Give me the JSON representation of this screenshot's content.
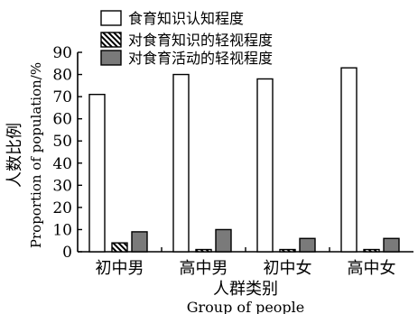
{
  "chart_data": {
    "type": "bar",
    "title": "",
    "xlabel": "人群类别",
    "xlabel_en": "Group of people",
    "ylabel": "人数比例",
    "ylabel_en": "Proportion of population/%",
    "ylim": [
      0,
      90
    ],
    "yticks": [
      0,
      10,
      20,
      30,
      40,
      50,
      60,
      70,
      80,
      90
    ],
    "categories": [
      "初中男",
      "高中男",
      "初中女",
      "高中女"
    ],
    "legend_position": "top",
    "series": [
      {
        "name": "食育知识认知程度",
        "values": [
          71,
          80,
          78,
          83
        ],
        "fill": "#ffffff",
        "pattern": "none"
      },
      {
        "name": "对食育知识的轻视程度",
        "values": [
          4,
          1,
          1,
          1
        ],
        "fill": "#111111",
        "pattern": "hatched"
      },
      {
        "name": "对食育活动的轻视程度",
        "values": [
          9,
          10,
          6,
          6
        ],
        "fill": "#7a7a7a",
        "pattern": "none"
      }
    ]
  }
}
